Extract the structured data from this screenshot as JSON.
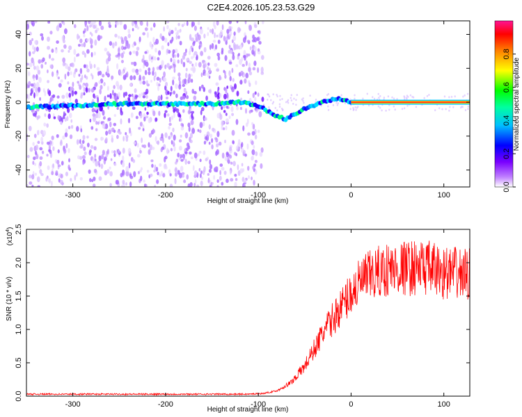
{
  "title": "C2E4.2026.105.23.53.G29",
  "chart_data": [
    {
      "type": "heatmap",
      "xlabel": "Height of straight line (km)",
      "ylabel": "Frequency (Hz)",
      "xlim": [
        -350,
        128
      ],
      "ylim": [
        -50,
        48
      ],
      "xticks": [
        -300,
        -200,
        -100,
        0,
        100
      ],
      "yticks": [
        -40,
        -20,
        0,
        20,
        40
      ],
      "colorbar": {
        "label": "Normalized spectral amplitude",
        "range": [
          0.0,
          1.0
        ],
        "ticks": [
          "0.0",
          "0.2",
          "0.4",
          "0.6",
          "0.8"
        ],
        "colormap": [
          "#ffffff",
          "#9b30ff",
          "#0000ff",
          "#00ffff",
          "#00ff00",
          "#ffff00",
          "#ff0000",
          "#ff1493"
        ]
      },
      "ridge": [
        {
          "x": -350,
          "y": -3
        },
        {
          "x": -300,
          "y": -2
        },
        {
          "x": -250,
          "y": -1
        },
        {
          "x": -200,
          "y": -1
        },
        {
          "x": -150,
          "y": -1
        },
        {
          "x": -120,
          "y": 0
        },
        {
          "x": -100,
          "y": -2
        },
        {
          "x": -85,
          "y": -7
        },
        {
          "x": -70,
          "y": -10
        },
        {
          "x": -50,
          "y": -4
        },
        {
          "x": -30,
          "y": 0
        },
        {
          "x": -15,
          "y": 2
        },
        {
          "x": 0,
          "y": 0
        },
        {
          "x": 50,
          "y": 0
        },
        {
          "x": 128,
          "y": 0
        }
      ],
      "grid": false
    },
    {
      "type": "line",
      "xlabel": "Height of straight line (km)",
      "ylabel": "SNR (10 * v/v)",
      "multiplier_label": "(x10",
      "multiplier_exp": "4",
      "xlim": [
        -350,
        128
      ],
      "ylim": [
        0.0,
        2.5
      ],
      "xticks": [
        -300,
        -200,
        -100,
        0,
        100
      ],
      "yticks": [
        "0.0",
        "0.5",
        "1.0",
        "1.5",
        "2.0",
        "2.5"
      ],
      "color": "#ff0000",
      "envelope": [
        {
          "x": -350,
          "y": 0.03
        },
        {
          "x": -110,
          "y": 0.03
        },
        {
          "x": -95,
          "y": 0.04
        },
        {
          "x": -80,
          "y": 0.08
        },
        {
          "x": -65,
          "y": 0.2
        },
        {
          "x": -50,
          "y": 0.45
        },
        {
          "x": -40,
          "y": 0.7
        },
        {
          "x": -30,
          "y": 0.95
        },
        {
          "x": -20,
          "y": 1.15
        },
        {
          "x": -10,
          "y": 1.35
        },
        {
          "x": 0,
          "y": 1.55
        },
        {
          "x": 10,
          "y": 1.7
        },
        {
          "x": 20,
          "y": 1.8
        },
        {
          "x": 40,
          "y": 1.9
        },
        {
          "x": 60,
          "y": 1.92
        },
        {
          "x": 80,
          "y": 1.93
        },
        {
          "x": 100,
          "y": 1.85
        },
        {
          "x": 128,
          "y": 1.82
        }
      ],
      "grid": false
    }
  ]
}
